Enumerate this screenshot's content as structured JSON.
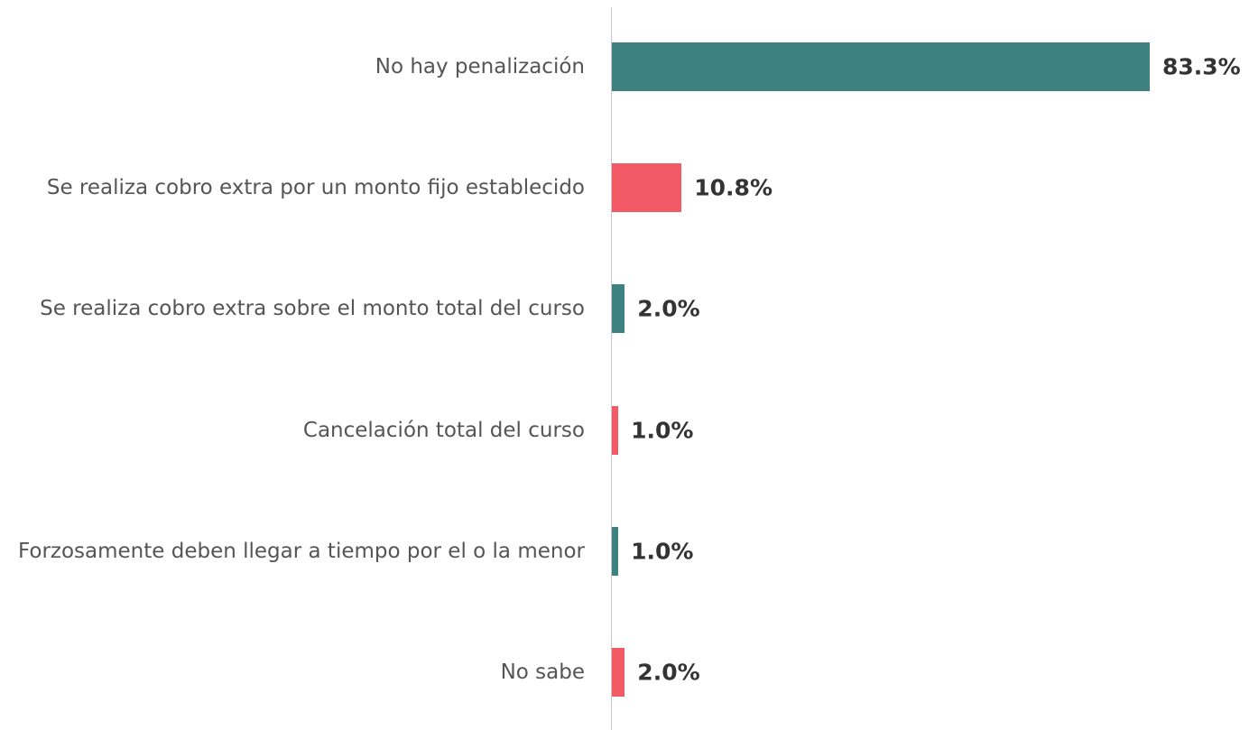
{
  "chart_data": {
    "type": "bar",
    "orientation": "horizontal",
    "categories": [
      "No hay penalización",
      "Se realiza cobro extra por un monto fijo establecido",
      "Se realiza cobro extra sobre el monto total del curso",
      "Cancelación total del curso",
      "Forzosamente deben llegar a tiempo por el o la menor",
      "No sabe"
    ],
    "values": [
      83.3,
      10.8,
      2.0,
      1.0,
      1.0,
      2.0
    ],
    "value_labels": [
      "83.3%",
      "10.8%",
      "2.0%",
      "1.0%",
      "1.0%",
      "2.0%"
    ],
    "colors": [
      "#3d8280",
      "#f25a65",
      "#3d8280",
      "#f25a65",
      "#3d8280",
      "#f25a65"
    ]
  }
}
